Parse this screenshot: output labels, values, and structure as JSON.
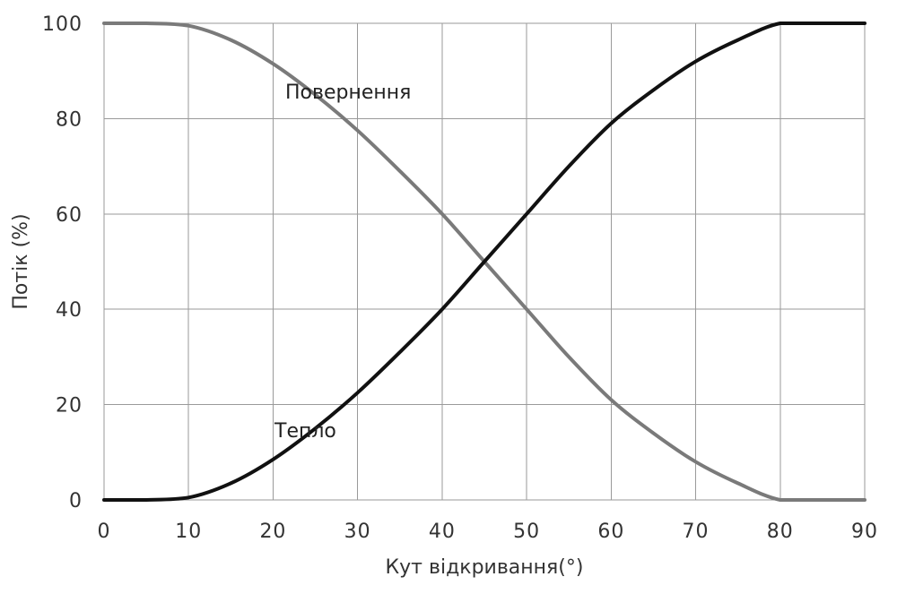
{
  "chart_data": {
    "type": "line",
    "title": "",
    "xlabel": "Кут відкривання(°)",
    "ylabel": "Потік (%)",
    "xlim": [
      0,
      90
    ],
    "ylim": [
      0,
      100
    ],
    "x_ticks": [
      "0",
      "10",
      "20",
      "30",
      "40",
      "50",
      "60",
      "70",
      "80",
      "90"
    ],
    "y_ticks": [
      "0",
      "20",
      "40",
      "60",
      "80",
      "100"
    ],
    "grid": true,
    "legend": "none",
    "series": [
      {
        "name": "Тепло",
        "color": "#111111",
        "x": [
          0,
          5,
          10,
          15,
          20,
          25,
          30,
          35,
          40,
          45,
          50,
          55,
          60,
          65,
          70,
          75,
          80,
          85,
          90
        ],
        "y": [
          0,
          0,
          0.5,
          3.5,
          8.5,
          15,
          22.5,
          31,
          40,
          50,
          60,
          70,
          79,
          86,
          92,
          96.5,
          100,
          100,
          100
        ]
      },
      {
        "name": "Повернення",
        "color": "#7a7a7a",
        "x": [
          0,
          5,
          10,
          15,
          20,
          25,
          30,
          35,
          40,
          45,
          50,
          55,
          60,
          65,
          70,
          75,
          80,
          85,
          90
        ],
        "y": [
          100,
          100,
          99.5,
          96.5,
          91.5,
          85,
          77.5,
          69,
          60,
          50,
          40,
          30,
          21,
          14,
          8,
          3.5,
          0,
          0,
          0
        ]
      }
    ]
  }
}
